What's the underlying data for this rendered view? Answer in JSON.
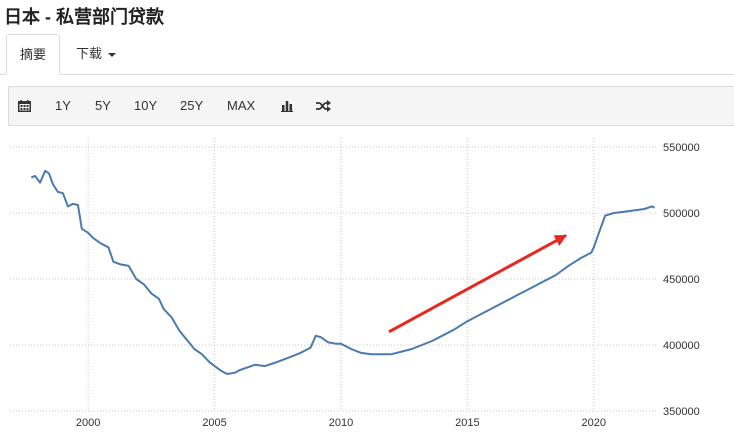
{
  "page": {
    "title": "日本 - 私营部门贷款"
  },
  "tabs": {
    "summary": "摘要",
    "download": "下载"
  },
  "toolbar": {
    "calendar_icon": "calendar-icon",
    "ranges": [
      "1Y",
      "5Y",
      "10Y",
      "25Y",
      "MAX"
    ],
    "bar_icon": "bar-chart-icon",
    "shuffle_icon": "shuffle-icon"
  },
  "colors": {
    "line": "#4a7ab0",
    "arrow": "#e8281e"
  },
  "chart_data": {
    "type": "line",
    "xlabel": "",
    "ylabel": "",
    "xlim": [
      1997.7,
      2022.5
    ],
    "ylim": [
      350000,
      550000
    ],
    "x_ticks": [
      2000,
      2005,
      2010,
      2015,
      2020
    ],
    "x_tick_labels": [
      "2000",
      "2005",
      "2010",
      "2015",
      "2020"
    ],
    "y_ticks": [
      350000,
      400000,
      450000,
      500000,
      550000
    ],
    "y_tick_labels": [
      "350000",
      "400000",
      "450000",
      "500000",
      "550000"
    ],
    "grid": true,
    "series": [
      {
        "points": [
          [
            1997.75,
            527000
          ],
          [
            1997.9,
            528000
          ],
          [
            1998.1,
            523000
          ],
          [
            1998.3,
            532000
          ],
          [
            1998.45,
            530000
          ],
          [
            1998.6,
            522000
          ],
          [
            1998.8,
            516000
          ],
          [
            1999.0,
            515000
          ],
          [
            1999.2,
            505000
          ],
          [
            1999.4,
            507000
          ],
          [
            1999.6,
            506000
          ],
          [
            1999.75,
            488000
          ],
          [
            2000.0,
            485000
          ],
          [
            2000.2,
            481000
          ],
          [
            2000.5,
            477000
          ],
          [
            2000.8,
            474000
          ],
          [
            2001.0,
            463000
          ],
          [
            2001.3,
            461000
          ],
          [
            2001.6,
            460000
          ],
          [
            2001.9,
            450000
          ],
          [
            2002.2,
            446000
          ],
          [
            2002.5,
            439000
          ],
          [
            2002.8,
            435000
          ],
          [
            2003.0,
            427000
          ],
          [
            2003.3,
            421000
          ],
          [
            2003.6,
            411000
          ],
          [
            2003.9,
            404000
          ],
          [
            2004.2,
            397000
          ],
          [
            2004.5,
            393000
          ],
          [
            2004.8,
            387000
          ],
          [
            2005.0,
            384000
          ],
          [
            2005.3,
            380000
          ],
          [
            2005.5,
            378000
          ],
          [
            2005.8,
            379000
          ],
          [
            2006.0,
            381000
          ],
          [
            2006.3,
            383000
          ],
          [
            2006.6,
            385000
          ],
          [
            2007.0,
            384000
          ],
          [
            2007.3,
            386000
          ],
          [
            2007.6,
            388000
          ],
          [
            2008.0,
            391000
          ],
          [
            2008.4,
            394000
          ],
          [
            2008.8,
            398000
          ],
          [
            2009.0,
            407000
          ],
          [
            2009.2,
            406000
          ],
          [
            2009.5,
            402000
          ],
          [
            2009.8,
            401000
          ],
          [
            2010.0,
            401000
          ],
          [
            2010.4,
            397000
          ],
          [
            2010.8,
            394000
          ],
          [
            2011.2,
            393000
          ],
          [
            2011.6,
            393000
          ],
          [
            2012.0,
            393000
          ],
          [
            2012.4,
            395000
          ],
          [
            2012.8,
            397000
          ],
          [
            2013.2,
            400000
          ],
          [
            2013.6,
            403000
          ],
          [
            2014.0,
            407000
          ],
          [
            2014.5,
            412000
          ],
          [
            2015.0,
            418000
          ],
          [
            2015.5,
            423000
          ],
          [
            2016.0,
            428000
          ],
          [
            2016.5,
            433000
          ],
          [
            2017.0,
            438000
          ],
          [
            2017.5,
            443000
          ],
          [
            2018.0,
            448000
          ],
          [
            2018.5,
            453000
          ],
          [
            2019.0,
            460000
          ],
          [
            2019.5,
            466000
          ],
          [
            2019.9,
            470000
          ],
          [
            2020.0,
            474000
          ],
          [
            2020.2,
            485000
          ],
          [
            2020.45,
            498000
          ],
          [
            2020.8,
            500000
          ],
          [
            2021.2,
            501000
          ],
          [
            2021.6,
            502000
          ],
          [
            2022.0,
            503000
          ],
          [
            2022.3,
            505000
          ],
          [
            2022.4,
            504000
          ]
        ]
      }
    ],
    "annotation": {
      "type": "arrow",
      "from": [
        2011.9,
        410000
      ],
      "to": [
        2018.9,
        483000
      ]
    }
  }
}
